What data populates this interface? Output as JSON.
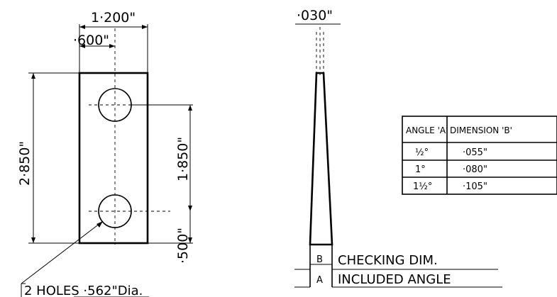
{
  "dimensions": {
    "overall_width": "1·200\"",
    "hole_spacing": "·600\"",
    "thickness": "·030\"",
    "overall_length": "2·850\"",
    "hole_centers": "1·850\"",
    "hole_from_end": "·500\"",
    "holes_note": "2 HOLES ·562\"Dia."
  },
  "table": {
    "headers": {
      "angle": "ANGLE 'A'",
      "dimension": "DIMENSION 'B'"
    },
    "rows": [
      {
        "angle": "½°",
        "dimension": "·055\""
      },
      {
        "angle": "1°",
        "dimension": "·080\""
      },
      {
        "angle": "1½°",
        "dimension": "·105\""
      }
    ]
  },
  "legend": {
    "b_letter": "B",
    "b_text": "CHECKING DIM.",
    "a_letter": "A",
    "a_text": "INCLUDED ANGLE"
  }
}
